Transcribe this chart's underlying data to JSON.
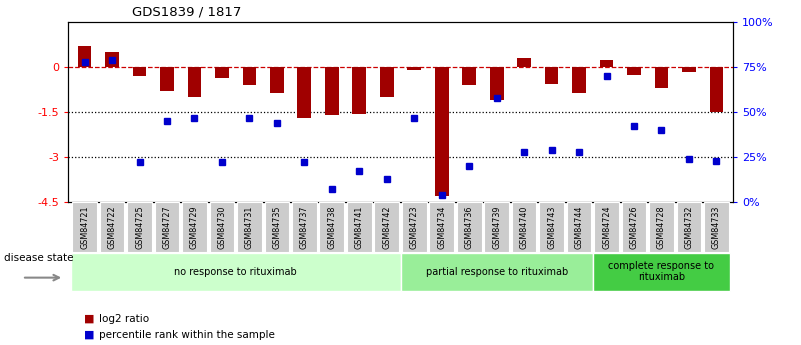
{
  "title": "GDS1839 / 1817",
  "samples": [
    "GSM84721",
    "GSM84722",
    "GSM84725",
    "GSM84727",
    "GSM84729",
    "GSM84730",
    "GSM84731",
    "GSM84735",
    "GSM84737",
    "GSM84738",
    "GSM84741",
    "GSM84742",
    "GSM84723",
    "GSM84734",
    "GSM84736",
    "GSM84739",
    "GSM84740",
    "GSM84743",
    "GSM84744",
    "GSM84724",
    "GSM84726",
    "GSM84728",
    "GSM84732",
    "GSM84733"
  ],
  "log2_ratio": [
    0.7,
    0.5,
    -0.3,
    -0.8,
    -1.0,
    -0.35,
    -0.6,
    -0.85,
    -1.7,
    -1.6,
    -1.55,
    -1.0,
    -0.1,
    -4.3,
    -0.6,
    -1.1,
    0.3,
    -0.55,
    -0.85,
    0.25,
    -0.25,
    -0.7,
    -0.15,
    -1.5
  ],
  "percentile": [
    78,
    79,
    22,
    45,
    47,
    22,
    47,
    44,
    22,
    7,
    17,
    13,
    47,
    4,
    20,
    58,
    28,
    29,
    28,
    70,
    42,
    40,
    24,
    23
  ],
  "bar_color": "#a00000",
  "dot_color": "#0000cc",
  "ylim_left": [
    -4.5,
    1.5
  ],
  "ylim_right": [
    0,
    100
  ],
  "yticks_left": [
    0,
    -1.5,
    -3,
    -4.5
  ],
  "yticks_right": [
    0,
    25,
    50,
    75,
    100
  ],
  "ytick_labels_right": [
    "0%",
    "25%",
    "50%",
    "75%",
    "100%"
  ],
  "hline_y": [
    0,
    -1.5,
    -3
  ],
  "hline_styles": [
    "--",
    ":",
    ":"
  ],
  "hline_colors": [
    "#cc0000",
    "#000000",
    "#000000"
  ],
  "groups": [
    {
      "label": "no response to rituximab",
      "start": 0,
      "end": 12,
      "color": "#ccffcc"
    },
    {
      "label": "partial response to rituximab",
      "start": 12,
      "end": 19,
      "color": "#99ee99"
    },
    {
      "label": "complete response to\nrituximab",
      "start": 19,
      "end": 24,
      "color": "#44cc44"
    }
  ],
  "disease_state_label": "disease state",
  "legend_items": [
    {
      "label": "log2 ratio",
      "color": "#a00000"
    },
    {
      "label": "percentile rank within the sample",
      "color": "#0000cc"
    }
  ],
  "bg_color": "#ffffff",
  "label_bg_color": "#cccccc",
  "label_border_color": "#ffffff"
}
